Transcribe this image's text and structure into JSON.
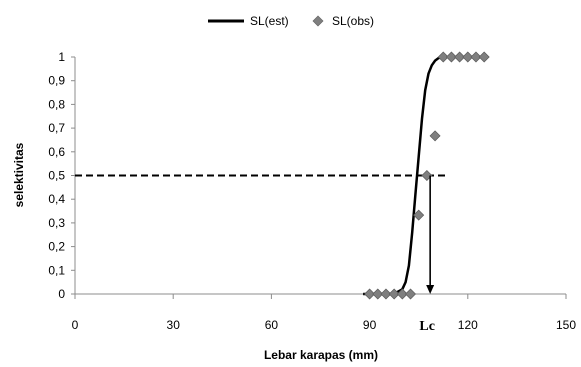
{
  "chart_data": {
    "type": "line",
    "xlabel": "Lebar karapas (mm)",
    "ylabel": "selektivitas",
    "xlim": [
      0,
      150
    ],
    "ylim": [
      0,
      1
    ],
    "x_ticks": [
      {
        "value": 0,
        "label": "0"
      },
      {
        "value": 30,
        "label": "30"
      },
      {
        "value": 60,
        "label": "60"
      },
      {
        "value": 90,
        "label": "90"
      },
      {
        "value": 120,
        "label": "120"
      },
      {
        "value": 150,
        "label": "150"
      }
    ],
    "y_ticks": [
      {
        "value": 0,
        "label": "0"
      },
      {
        "value": 0.1,
        "label": "0,1"
      },
      {
        "value": 0.2,
        "label": "0,2"
      },
      {
        "value": 0.3,
        "label": "0,3"
      },
      {
        "value": 0.4,
        "label": "0,4"
      },
      {
        "value": 0.5,
        "label": "0,5"
      },
      {
        "value": 0.6,
        "label": "0,6"
      },
      {
        "value": 0.7,
        "label": "0,7"
      },
      {
        "value": 0.8,
        "label": "0,8"
      },
      {
        "value": 0.9,
        "label": "0,9"
      },
      {
        "value": 1,
        "label": "1"
      }
    ],
    "legend_position": "top-center",
    "grid": false,
    "series": [
      {
        "name": "SL(est)",
        "kind": "line",
        "color": "#000000",
        "x": [
          88,
          96,
          98,
          100,
          101,
          102,
          103,
          104,
          105,
          106,
          107,
          108,
          109,
          110,
          111,
          112,
          113
        ],
        "y": [
          0,
          0,
          0.005,
          0.02,
          0.05,
          0.12,
          0.26,
          0.42,
          0.58,
          0.74,
          0.86,
          0.93,
          0.965,
          0.985,
          0.995,
          0.999,
          1
        ]
      },
      {
        "name": "SL(obs)",
        "kind": "scatter",
        "color": "#7f7f7f",
        "marker": "diamond",
        "x": [
          90,
          92.5,
          95,
          97.5,
          100,
          102.5,
          105,
          107.5,
          110,
          112.5,
          115,
          117.5,
          120,
          122.5,
          125
        ],
        "y": [
          0,
          0,
          0,
          0,
          0,
          0,
          0.333,
          0.5,
          0.667,
          1,
          1,
          1,
          1,
          1,
          1
        ]
      }
    ],
    "reference_line": {
      "y": 0.5,
      "x_from": 0,
      "x_to": 114,
      "style": "dashed"
    },
    "annotation": {
      "label": "Lc",
      "x": 108.5,
      "arrow_from_y": 0.5,
      "arrow_to_y": 0
    }
  }
}
